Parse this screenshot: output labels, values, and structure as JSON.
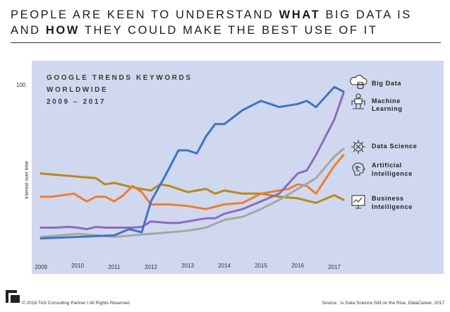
{
  "title": {
    "part1": "PEOPLE ARE KEEN TO UNDERSTAND ",
    "bold1": "WHAT",
    "part2": " BIG DATA IS AND ",
    "bold2": "HOW",
    "part3": " THEY COULD MAKE THE BEST USE OF IT"
  },
  "footer": {
    "copyright": "© 2018 TAS Consulting Partner  I  All Rights Reserved",
    "source": "Source : Is Data Science Still on the Rise, DataCareer, 2017"
  },
  "chart_data": {
    "type": "line",
    "title_lines": [
      "GOOGLE TRENDS KEYWORDS",
      "WORLDWIDE",
      "2009 – 2017"
    ],
    "ylabel": "Interest over time",
    "y_tick_labels": [
      {
        "label": "100",
        "value": 100
      }
    ],
    "ylim": [
      0,
      100
    ],
    "xlim": [
      2009,
      2017.5
    ],
    "x_tick_labels": [
      "2009",
      "2010",
      "2011",
      "2012",
      "2013",
      "2014",
      "2015",
      "2016",
      "2017"
    ],
    "series": [
      {
        "name": "Big Data",
        "color": "#4472c4",
        "icon": "cloud-database-icon",
        "x": [
          2009,
          2010,
          2011,
          2011.4,
          2011.75,
          2012,
          2012.4,
          2012.75,
          2013,
          2013.25,
          2013.5,
          2013.75,
          2014,
          2014.5,
          2015,
          2015.5,
          2016,
          2016.25,
          2016.5,
          2017,
          2017.25
        ],
        "y": [
          1,
          2,
          3,
          7,
          5,
          25,
          42,
          58,
          58,
          56,
          67,
          75,
          75,
          84,
          90,
          86,
          88,
          90,
          86,
          99,
          96
        ]
      },
      {
        "name": "Machine Learning",
        "color": "#8c6bbd",
        "icon": "robot-icon",
        "x": [
          2009,
          2009.4,
          2009.75,
          2010,
          2010.25,
          2010.5,
          2010.75,
          2011,
          2011.5,
          2011.75,
          2012,
          2012.5,
          2012.75,
          2013,
          2013.5,
          2013.75,
          2014,
          2014.5,
          2015,
          2015.5,
          2016,
          2016.25,
          2016.5,
          2017,
          2017.25
        ],
        "y": [
          8,
          8,
          8.5,
          8,
          7,
          8.5,
          8,
          8,
          8,
          8.5,
          12,
          11,
          11,
          12,
          14,
          14,
          17,
          20,
          25,
          30,
          43,
          45,
          55,
          78,
          95
        ]
      },
      {
        "name": "Data Science",
        "color": "#a6a6a6",
        "icon": "dna-icon",
        "x": [
          2009,
          2009.5,
          2010,
          2010.5,
          2011,
          2011.5,
          2012,
          2012.5,
          2013,
          2013.5,
          2014,
          2014.5,
          2015,
          2015.5,
          2016,
          2016.5,
          2017,
          2017.25
        ],
        "y": [
          2,
          3,
          4,
          3,
          2,
          3,
          4,
          5,
          6,
          8,
          13,
          15,
          20,
          26,
          33,
          40,
          54,
          59
        ]
      },
      {
        "name": "Artificial Intelligence",
        "color": "#ed7d31",
        "icon": "circuit-brain-icon",
        "x": [
          2009,
          2009.3,
          2009.6,
          2009.9,
          2010.25,
          2010.5,
          2010.75,
          2011,
          2011.25,
          2011.5,
          2011.75,
          2012,
          2012.5,
          2013,
          2013.5,
          2014,
          2014.5,
          2015,
          2015.5,
          2015.75,
          2016,
          2016.25,
          2016.5,
          2017,
          2017.25
        ],
        "y": [
          28,
          28,
          29,
          30,
          25,
          28,
          28,
          25,
          29,
          35,
          31,
          23,
          23,
          22,
          20,
          23,
          24,
          30,
          32,
          33,
          36,
          35,
          30,
          48,
          55
        ]
      },
      {
        "name": "Business Intelligence",
        "color": "#b58a1d",
        "icon": "chart-board-icon",
        "x": [
          2009,
          2009.5,
          2010,
          2010.5,
          2010.75,
          2011,
          2011.5,
          2012,
          2012.25,
          2012.5,
          2013,
          2013.5,
          2013.75,
          2014,
          2014.5,
          2015,
          2015.5,
          2016,
          2016.5,
          2017,
          2017.25
        ],
        "y": [
          43,
          42,
          41,
          40,
          36,
          37,
          34,
          32,
          36,
          35,
          31,
          33,
          30,
          32,
          30,
          30,
          28,
          27,
          24,
          29,
          26
        ]
      }
    ]
  }
}
